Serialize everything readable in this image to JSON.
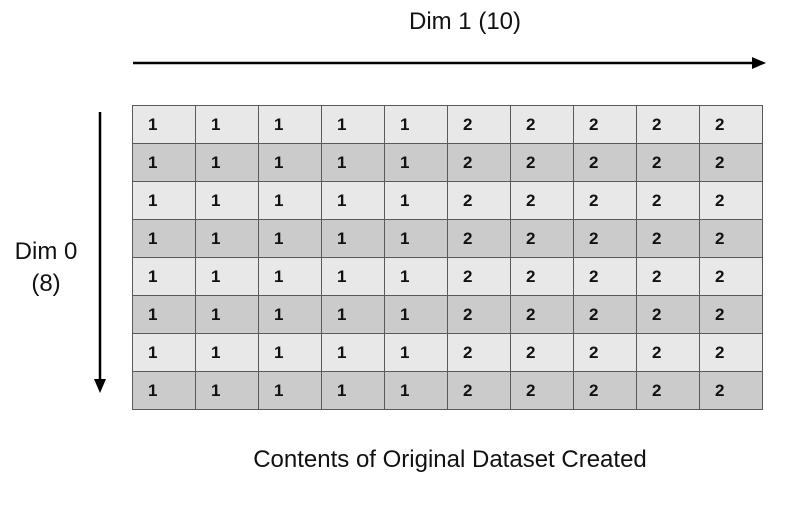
{
  "dim1_label": "Dim 1 (10)",
  "dim0_label_line1": "Dim 0",
  "dim0_label_line2": "(8)",
  "caption": "Contents of Original Dataset Created",
  "colors": {
    "row_light": "#e8e8e8",
    "row_dark": "#cbcbcb",
    "border": "#5a5a5a"
  },
  "grid": [
    [
      1,
      1,
      1,
      1,
      1,
      2,
      2,
      2,
      2,
      2
    ],
    [
      1,
      1,
      1,
      1,
      1,
      2,
      2,
      2,
      2,
      2
    ],
    [
      1,
      1,
      1,
      1,
      1,
      2,
      2,
      2,
      2,
      2
    ],
    [
      1,
      1,
      1,
      1,
      1,
      2,
      2,
      2,
      2,
      2
    ],
    [
      1,
      1,
      1,
      1,
      1,
      2,
      2,
      2,
      2,
      2
    ],
    [
      1,
      1,
      1,
      1,
      1,
      2,
      2,
      2,
      2,
      2
    ],
    [
      1,
      1,
      1,
      1,
      1,
      2,
      2,
      2,
      2,
      2
    ],
    [
      1,
      1,
      1,
      1,
      1,
      2,
      2,
      2,
      2,
      2
    ]
  ]
}
